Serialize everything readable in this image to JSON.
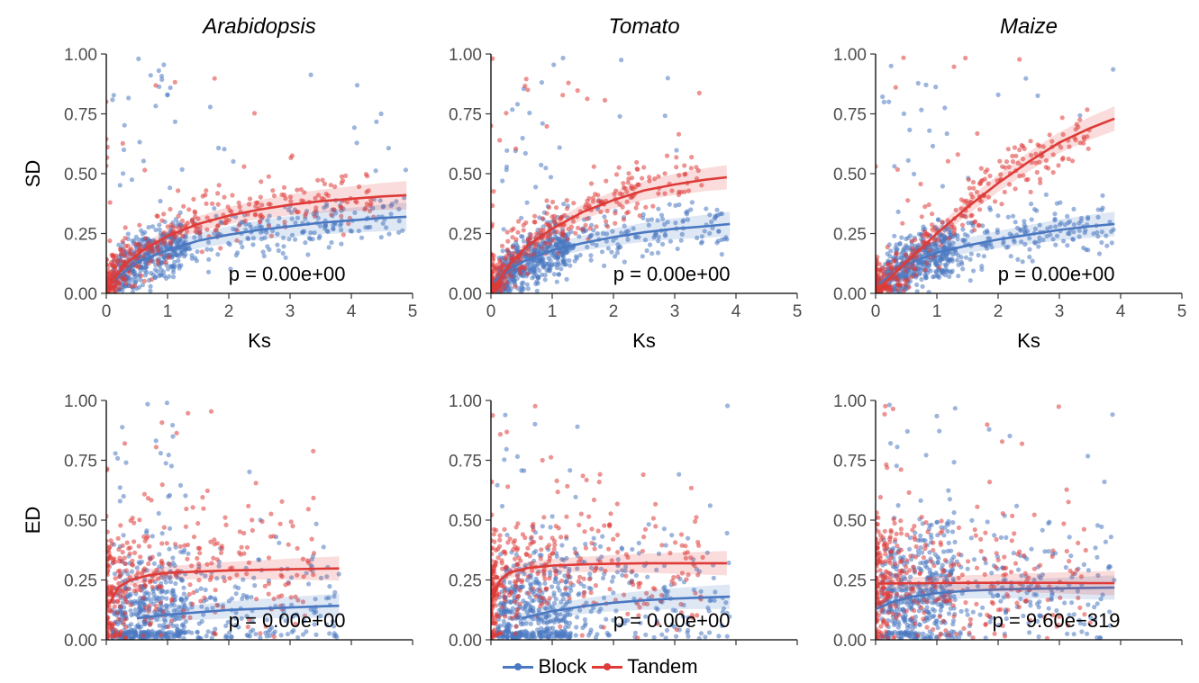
{
  "colors": {
    "block": "#4a78c1",
    "tandem": "#de3b38",
    "axis": "#000000",
    "tick": "#4d4d4d"
  },
  "legend": {
    "position": "bottom",
    "items": [
      {
        "label": "Block",
        "color": "#4a78c1"
      },
      {
        "label": "Tandem",
        "color": "#de3b38"
      }
    ]
  },
  "chart_data": [
    {
      "type": "scatter",
      "id": "sd-arabidopsis",
      "title": "Arabidopsis",
      "ylabel": "SD",
      "xlabel": "Ks",
      "xlim": [
        0,
        5
      ],
      "ylim": [
        0,
        1
      ],
      "xticks": [
        "0",
        "1",
        "2",
        "3",
        "4",
        "5"
      ],
      "yticks": [
        "0.00",
        "0.25",
        "0.50",
        "0.75",
        "1.00"
      ],
      "annotation": "p = 0.00e+00",
      "grid": false,
      "series": [
        {
          "name": "Block",
          "color": "#4a78c1",
          "fit_x": [
            0.1,
            0.5,
            1,
            1.5,
            2,
            2.5,
            3,
            3.5,
            4,
            4.5,
            4.9
          ],
          "fit_y": [
            0.05,
            0.13,
            0.18,
            0.22,
            0.245,
            0.265,
            0.28,
            0.295,
            0.305,
            0.315,
            0.32
          ]
        },
        {
          "name": "Tandem",
          "color": "#de3b38",
          "fit_x": [
            0.05,
            0.3,
            0.6,
            1,
            1.5,
            2,
            2.5,
            3,
            3.5,
            4,
            4.5,
            4.9
          ],
          "fit_y": [
            0.03,
            0.12,
            0.18,
            0.24,
            0.29,
            0.325,
            0.35,
            0.37,
            0.385,
            0.395,
            0.405,
            0.41
          ]
        }
      ]
    },
    {
      "type": "scatter",
      "id": "sd-tomato",
      "title": "Tomato",
      "ylabel": "",
      "xlabel": "Ks",
      "xlim": [
        0,
        5
      ],
      "ylim": [
        0,
        1
      ],
      "xticks": [
        "0",
        "1",
        "2",
        "3",
        "4",
        "5"
      ],
      "yticks": [
        "0.00",
        "0.25",
        "0.50",
        "0.75",
        "1.00"
      ],
      "annotation": "p = 0.00e+00",
      "grid": false,
      "series": [
        {
          "name": "Block",
          "color": "#4a78c1",
          "fit_x": [
            0.05,
            0.5,
            1,
            1.5,
            2,
            2.5,
            3,
            3.5,
            3.9
          ],
          "fit_y": [
            0.05,
            0.13,
            0.18,
            0.21,
            0.235,
            0.255,
            0.27,
            0.28,
            0.29
          ]
        },
        {
          "name": "Tandem",
          "color": "#de3b38",
          "fit_x": [
            0.05,
            0.3,
            0.6,
            1,
            1.5,
            2,
            2.5,
            3,
            3.5,
            3.85
          ],
          "fit_y": [
            0.02,
            0.12,
            0.2,
            0.27,
            0.34,
            0.39,
            0.43,
            0.455,
            0.475,
            0.485
          ]
        }
      ]
    },
    {
      "type": "scatter",
      "id": "sd-maize",
      "title": "Maize",
      "ylabel": "",
      "xlabel": "Ks",
      "xlim": [
        0,
        5
      ],
      "ylim": [
        0,
        1
      ],
      "xticks": [
        "0",
        "1",
        "2",
        "3",
        "4",
        "5"
      ],
      "yticks": [
        "0.00",
        "0.25",
        "0.50",
        "0.75",
        "1.00"
      ],
      "annotation": "p = 0.00e+00",
      "grid": false,
      "series": [
        {
          "name": "Block",
          "color": "#4a78c1",
          "fit_x": [
            0.05,
            0.5,
            1,
            1.5,
            2,
            2.5,
            3,
            3.5,
            3.9
          ],
          "fit_y": [
            0.04,
            0.12,
            0.17,
            0.2,
            0.225,
            0.245,
            0.265,
            0.28,
            0.29
          ]
        },
        {
          "name": "Tandem",
          "color": "#de3b38",
          "fit_x": [
            0.05,
            0.5,
            1,
            1.5,
            2,
            2.5,
            3,
            3.5,
            3.9
          ],
          "fit_y": [
            0.02,
            0.13,
            0.25,
            0.36,
            0.46,
            0.55,
            0.63,
            0.69,
            0.73
          ]
        }
      ]
    },
    {
      "type": "scatter",
      "id": "ed-arabidopsis",
      "title": "",
      "ylabel": "ED",
      "xlabel": "Ks",
      "xlim": [
        0,
        5
      ],
      "ylim": [
        0,
        1
      ],
      "xticks": [
        "0",
        "1",
        "2",
        "3",
        "4",
        "5"
      ],
      "yticks": [
        "0.00",
        "0.25",
        "0.50",
        "0.75",
        "1.00"
      ],
      "annotation": "p = 0.00e+00",
      "grid": false,
      "series": [
        {
          "name": "Block",
          "color": "#4a78c1",
          "fit_x": [
            0.5,
            1,
            1.5,
            2,
            2.5,
            3,
            3.5,
            3.8
          ],
          "fit_y": [
            0.09,
            0.105,
            0.115,
            0.125,
            0.13,
            0.135,
            0.14,
            0.142
          ]
        },
        {
          "name": "Tandem",
          "color": "#de3b38",
          "fit_x": [
            0.05,
            0.2,
            0.4,
            0.7,
            1,
            1.5,
            2,
            2.5,
            3,
            3.5,
            3.8
          ],
          "fit_y": [
            0.15,
            0.22,
            0.25,
            0.27,
            0.28,
            0.285,
            0.29,
            0.292,
            0.295,
            0.297,
            0.298
          ]
        }
      ]
    },
    {
      "type": "scatter",
      "id": "ed-tomato",
      "title": "",
      "ylabel": "",
      "xlabel": "Ks",
      "xlim": [
        0,
        5
      ],
      "ylim": [
        0,
        1
      ],
      "xticks": [
        "0",
        "1",
        "2",
        "3",
        "4",
        "5"
      ],
      "yticks": [
        "0.00",
        "0.25",
        "0.50",
        "0.75",
        "1.00"
      ],
      "annotation": "p = 0.00e+00",
      "grid": false,
      "series": [
        {
          "name": "Block",
          "color": "#4a78c1",
          "fit_x": [
            0.5,
            1,
            1.5,
            2,
            2.5,
            3,
            3.5,
            3.9
          ],
          "fit_y": [
            0.09,
            0.12,
            0.14,
            0.155,
            0.165,
            0.172,
            0.177,
            0.18
          ]
        },
        {
          "name": "Tandem",
          "color": "#de3b38",
          "fit_x": [
            0.02,
            0.15,
            0.3,
            0.6,
            1,
            1.5,
            2,
            2.5,
            3,
            3.5,
            3.85
          ],
          "fit_y": [
            0.17,
            0.25,
            0.28,
            0.3,
            0.31,
            0.315,
            0.318,
            0.32,
            0.32,
            0.32,
            0.32
          ]
        }
      ]
    },
    {
      "type": "scatter",
      "id": "ed-maize",
      "title": "",
      "ylabel": "",
      "xlabel": "Ks",
      "xlim": [
        0,
        5
      ],
      "ylim": [
        0,
        1
      ],
      "xticks": [
        "0",
        "1",
        "2",
        "3",
        "4",
        "5"
      ],
      "yticks": [
        "0.00",
        "0.25",
        "0.50",
        "0.75",
        "1.00"
      ],
      "annotation": "p = 9.60e−319",
      "grid": false,
      "series": [
        {
          "name": "Block",
          "color": "#4a78c1",
          "fit_x": [
            0.02,
            0.3,
            0.6,
            1,
            1.5,
            2,
            2.5,
            3,
            3.5,
            3.9
          ],
          "fit_y": [
            0.13,
            0.16,
            0.18,
            0.195,
            0.205,
            0.21,
            0.213,
            0.215,
            0.217,
            0.218
          ]
        },
        {
          "name": "Tandem",
          "color": "#de3b38",
          "fit_x": [
            0.02,
            0.5,
            1,
            1.5,
            2,
            2.5,
            3,
            3.5,
            3.9
          ],
          "fit_y": [
            0.235,
            0.236,
            0.237,
            0.238,
            0.238,
            0.238,
            0.238,
            0.237,
            0.237
          ]
        }
      ]
    }
  ]
}
